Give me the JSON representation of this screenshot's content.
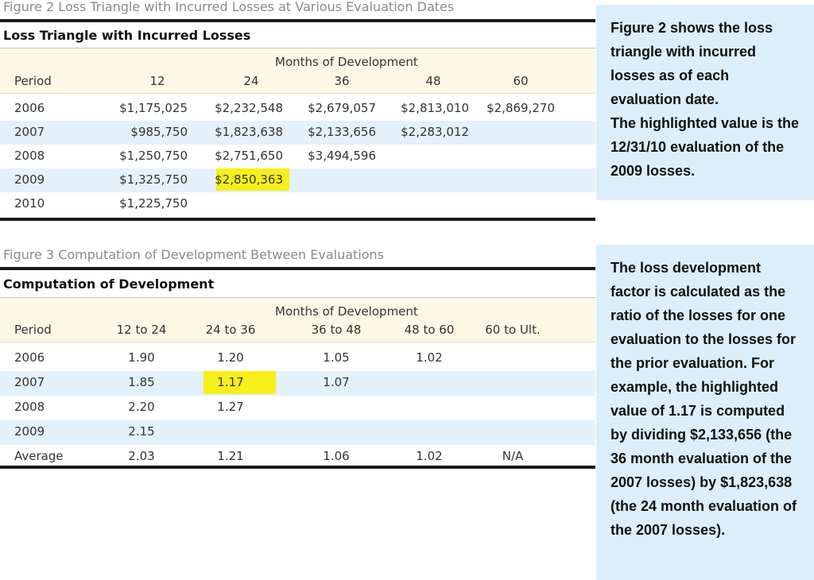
{
  "figure2": {
    "caption": "Figure 2 Loss Triangle with Incurred Losses at Various Evaluation Dates",
    "table_title": "Loss Triangle with Incurred Losses",
    "group_header": "Months of Development",
    "period_header": "Period",
    "columns": [
      "12",
      "24",
      "36",
      "48",
      "60"
    ],
    "rows": [
      {
        "period": "2006",
        "values": [
          "$1,175,025",
          "$2,232,548",
          "$2,679,057",
          "$2,813,010",
          "$2,869,270"
        ]
      },
      {
        "period": "2007",
        "values": [
          "$985,750",
          "$1,823,638",
          "$2,133,656",
          "$2,283,012",
          ""
        ]
      },
      {
        "period": "2008",
        "values": [
          "$1,250,750",
          "$2,751,650",
          "$3,494,596",
          "",
          ""
        ]
      },
      {
        "period": "2009",
        "values": [
          "$1,325,750",
          "$2,850,363",
          "",
          "",
          ""
        ]
      },
      {
        "period": "2010",
        "values": [
          "$1,225,750",
          "",
          "",
          "",
          ""
        ]
      }
    ],
    "highlight": {
      "row": 3,
      "col": 1,
      "color": "#f7ef1a"
    },
    "side_text": [
      "Figure 2 shows the loss triangle with incurred losses as of each evaluation date.",
      "The highlighted value is the 12/31/10 evaluation of the 2009 losses."
    ]
  },
  "figure3": {
    "caption": "Figure 3 Computation of Development Between Evaluations",
    "table_title": "Computation of Development",
    "group_header": "Months of Development",
    "period_header": "Period",
    "columns": [
      "12 to 24",
      "24 to 36",
      "36 to 48",
      "48 to 60",
      "60 to Ult."
    ],
    "rows": [
      {
        "period": "2006",
        "values": [
          "1.90",
          "1.20",
          "1.05",
          "1.02",
          ""
        ]
      },
      {
        "period": "2007",
        "values": [
          "1.85",
          "1.17",
          "1.07",
          "",
          ""
        ]
      },
      {
        "period": "2008",
        "values": [
          "2.20",
          "1.27",
          "",
          "",
          ""
        ]
      },
      {
        "period": "2009",
        "values": [
          "2.15",
          "",
          "",
          "",
          ""
        ]
      },
      {
        "period": "Average",
        "values": [
          "2.03",
          "1.21",
          "1.06",
          "1.02",
          "N/A"
        ]
      }
    ],
    "highlight": {
      "row": 1,
      "col": 1,
      "color": "#f7ef1a"
    },
    "side_text": [
      "The loss development factor is calculated as the ratio of the losses for one evaluation to the losses for the prior evaluation. For example, the highlighted value of 1.17 is computed by dividing $2,133,656 (the 36 month evaluation of the 2007 losses) by $1,823,638 (the 24 month evaluation of the 2007 losses)."
    ]
  },
  "colors": {
    "header_band": "#fdf8e6",
    "row_band": "#e4f1fb",
    "side_panel": "#dceefa",
    "highlight": "#f7ef1a",
    "rule": "#1a1a1a"
  }
}
